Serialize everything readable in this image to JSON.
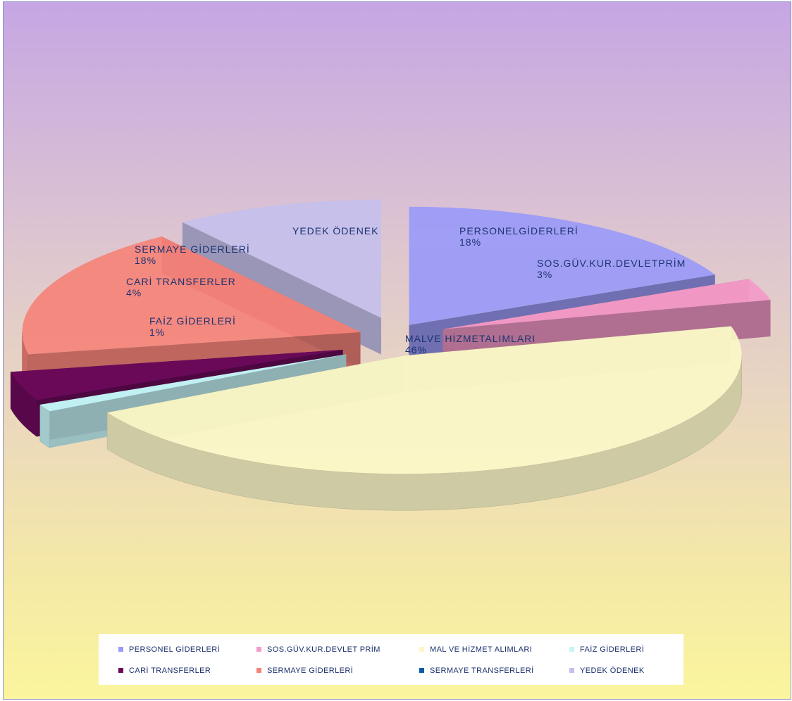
{
  "chart_data": {
    "type": "pie",
    "style": "3d-exploded",
    "slices": [
      {
        "name": "PERSONEL GİDERLERİ",
        "label": "PERSONELGİDERLERİ",
        "value": 18,
        "value_label": "18%",
        "color": "#9a9af7"
      },
      {
        "name": "SOS.GÜV.KUR.DEVLET PRİM",
        "label": "SOS.GÜV.KUR.DEVLETPRİM",
        "value": 3,
        "value_label": "3%",
        "color": "#f49ac8"
      },
      {
        "name": "MAL VE HİZMET ALIMLARI",
        "label": "MALVE HİZMETALIMLARI",
        "value": 46,
        "value_label": "46%",
        "color": "#fbf7c8"
      },
      {
        "name": "FAİZ GİDERLERİ",
        "label": "FAİZ GİDERLERİ",
        "value": 1,
        "value_label": "1%",
        "color": "#c6f5f7"
      },
      {
        "name": "CARİ TRANSFERLER",
        "label": "CARİ TRANSFERLER",
        "value": 4,
        "value_label": "4%",
        "color": "#6b0a5a"
      },
      {
        "name": "SERMAYE GİDERLERİ",
        "label": "SERMAYE GİDERLERİ",
        "value": 18,
        "value_label": "18%",
        "color": "#f5837a"
      },
      {
        "name": "SERMAYE TRANSFERLERİ",
        "value": 0,
        "color": "#0a5aa8"
      },
      {
        "name": "YEDEK ÖDENEK",
        "label": "YEDEK ÖDENEK",
        "value": 10,
        "value_label": "",
        "color": "#c4c0ec"
      }
    ],
    "legend": {
      "position": "bottom",
      "items": [
        {
          "label": "PERSONEL GİDERLERİ",
          "color": "#9a9af7"
        },
        {
          "label": "SOS.GÜV.KUR.DEVLET PRİM",
          "color": "#f49ac8"
        },
        {
          "label": "MAL VE HİZMET ALIMLARI",
          "color": "#fbf7c8"
        },
        {
          "label": "FAİZ GİDERLERİ",
          "color": "#c6f5f7"
        },
        {
          "label": "CARİ TRANSFERLER",
          "color": "#6b0a5a"
        },
        {
          "label": "SERMAYE GİDERLERİ",
          "color": "#f5837a"
        },
        {
          "label": "SERMAYE TRANSFERLERİ",
          "color": "#0a5aa8"
        },
        {
          "label": "YEDEK ÖDENEK",
          "color": "#c4c0ec"
        }
      ]
    }
  }
}
